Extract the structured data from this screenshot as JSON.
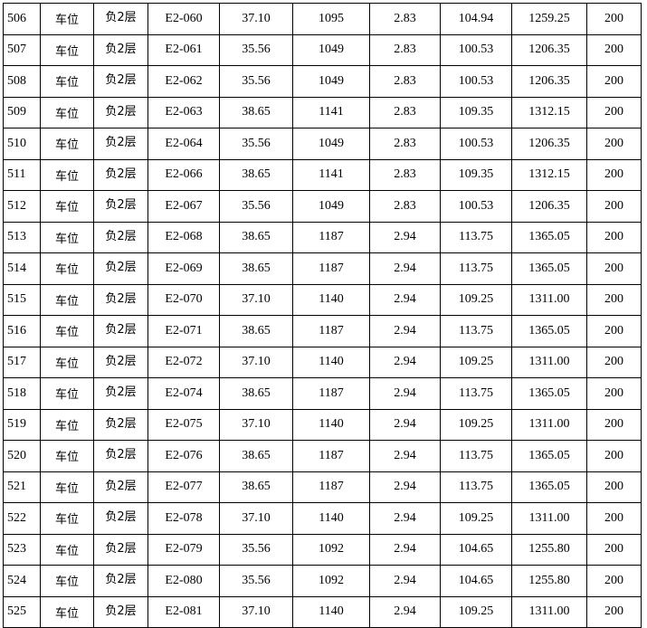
{
  "table": {
    "rows": [
      [
        "506",
        "车位",
        "负2层",
        "E2-060",
        "37.10",
        "1095",
        "2.83",
        "104.94",
        "1259.25",
        "200"
      ],
      [
        "507",
        "车位",
        "负2层",
        "E2-061",
        "35.56",
        "1049",
        "2.83",
        "100.53",
        "1206.35",
        "200"
      ],
      [
        "508",
        "车位",
        "负2层",
        "E2-062",
        "35.56",
        "1049",
        "2.83",
        "100.53",
        "1206.35",
        "200"
      ],
      [
        "509",
        "车位",
        "负2层",
        "E2-063",
        "38.65",
        "1141",
        "2.83",
        "109.35",
        "1312.15",
        "200"
      ],
      [
        "510",
        "车位",
        "负2层",
        "E2-064",
        "35.56",
        "1049",
        "2.83",
        "100.53",
        "1206.35",
        "200"
      ],
      [
        "511",
        "车位",
        "负2层",
        "E2-066",
        "38.65",
        "1141",
        "2.83",
        "109.35",
        "1312.15",
        "200"
      ],
      [
        "512",
        "车位",
        "负2层",
        "E2-067",
        "35.56",
        "1049",
        "2.83",
        "100.53",
        "1206.35",
        "200"
      ],
      [
        "513",
        "车位",
        "负2层",
        "E2-068",
        "38.65",
        "1187",
        "2.94",
        "113.75",
        "1365.05",
        "200"
      ],
      [
        "514",
        "车位",
        "负2层",
        "E2-069",
        "38.65",
        "1187",
        "2.94",
        "113.75",
        "1365.05",
        "200"
      ],
      [
        "515",
        "车位",
        "负2层",
        "E2-070",
        "37.10",
        "1140",
        "2.94",
        "109.25",
        "1311.00",
        "200"
      ],
      [
        "516",
        "车位",
        "负2层",
        "E2-071",
        "38.65",
        "1187",
        "2.94",
        "113.75",
        "1365.05",
        "200"
      ],
      [
        "517",
        "车位",
        "负2层",
        "E2-072",
        "37.10",
        "1140",
        "2.94",
        "109.25",
        "1311.00",
        "200"
      ],
      [
        "518",
        "车位",
        "负2层",
        "E2-074",
        "38.65",
        "1187",
        "2.94",
        "113.75",
        "1365.05",
        "200"
      ],
      [
        "519",
        "车位",
        "负2层",
        "E2-075",
        "37.10",
        "1140",
        "2.94",
        "109.25",
        "1311.00",
        "200"
      ],
      [
        "520",
        "车位",
        "负2层",
        "E2-076",
        "38.65",
        "1187",
        "2.94",
        "113.75",
        "1365.05",
        "200"
      ],
      [
        "521",
        "车位",
        "负2层",
        "E2-077",
        "38.65",
        "1187",
        "2.94",
        "113.75",
        "1365.05",
        "200"
      ],
      [
        "522",
        "车位",
        "负2层",
        "E2-078",
        "37.10",
        "1140",
        "2.94",
        "109.25",
        "1311.00",
        "200"
      ],
      [
        "523",
        "车位",
        "负2层",
        "E2-079",
        "35.56",
        "1092",
        "2.94",
        "104.65",
        "1255.80",
        "200"
      ],
      [
        "524",
        "车位",
        "负2层",
        "E2-080",
        "35.56",
        "1092",
        "2.94",
        "104.65",
        "1255.80",
        "200"
      ],
      [
        "525",
        "车位",
        "负2层",
        "E2-081",
        "37.10",
        "1140",
        "2.94",
        "109.25",
        "1311.00",
        "200"
      ]
    ]
  }
}
